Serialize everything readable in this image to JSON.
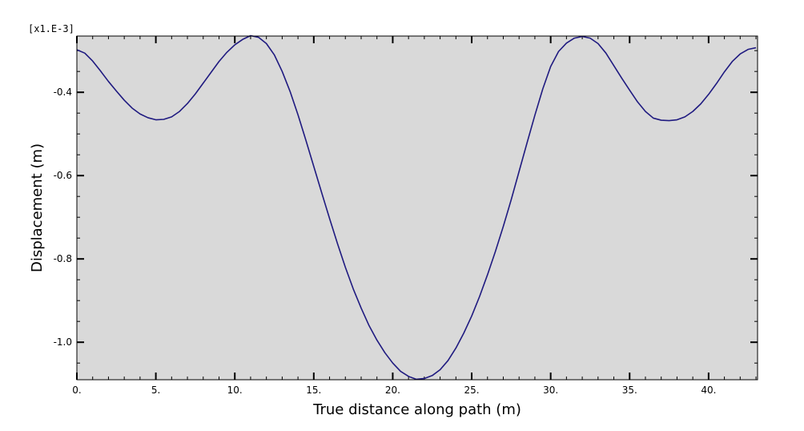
{
  "chart_data": {
    "type": "line",
    "title": "",
    "xlabel": "True distance along path (m)",
    "ylabel": "Displacement (m)",
    "y_multiplier_label": "[x1.E-3]",
    "xlim": [
      0,
      43.1
    ],
    "ylim": [
      -1.09,
      -0.265
    ],
    "x_ticks": [
      0,
      5,
      10,
      15,
      20,
      25,
      30,
      35,
      40
    ],
    "x_tick_labels": [
      "0.",
      "5.",
      "10.",
      "15.",
      "20.",
      "25.",
      "30.",
      "35.",
      "40."
    ],
    "y_ticks": [
      -0.4,
      -0.6,
      -0.8,
      -1.0
    ],
    "y_tick_labels": [
      "-0.4",
      "-0.6",
      "-0.8",
      "-1.0"
    ],
    "x_minor_step": 1,
    "y_minor_step": 0.05,
    "grid": false,
    "plot_background": "#d9d9d9",
    "line_color": "#1f1a80",
    "series": [
      {
        "x": [
          0,
          0.5,
          1,
          1.5,
          2,
          2.5,
          3,
          3.5,
          4,
          4.5,
          5,
          5.5,
          6,
          6.5,
          7,
          7.5,
          8,
          8.5,
          9,
          9.5,
          10,
          10.5,
          11,
          11.5,
          12,
          12.5,
          13,
          13.5,
          14,
          14.5,
          15,
          15.5,
          16,
          16.5,
          17,
          17.5,
          18,
          18.5,
          19,
          19.5,
          20,
          20.5,
          21,
          21.5,
          22,
          22.5,
          23,
          23.5,
          24,
          24.5,
          25,
          25.5,
          26,
          26.5,
          27,
          27.5,
          28,
          28.5,
          29,
          29.5,
          30,
          30.5,
          31,
          31.5,
          32,
          32.5,
          33,
          33.5,
          34,
          34.5,
          35,
          35.5,
          36,
          36.5,
          37,
          37.5,
          38,
          38.5,
          39,
          39.5,
          40,
          40.5,
          41,
          41.5,
          42,
          42.5,
          43
        ],
        "y": [
          -0.298,
          -0.306,
          -0.325,
          -0.349,
          -0.374,
          -0.397,
          -0.419,
          -0.438,
          -0.452,
          -0.461,
          -0.466,
          -0.465,
          -0.459,
          -0.446,
          -0.427,
          -0.404,
          -0.378,
          -0.352,
          -0.326,
          -0.304,
          -0.286,
          -0.273,
          -0.264,
          -0.268,
          -0.283,
          -0.31,
          -0.35,
          -0.398,
          -0.454,
          -0.515,
          -0.578,
          -0.641,
          -0.703,
          -0.763,
          -0.82,
          -0.872,
          -0.918,
          -0.96,
          -0.995,
          -1.025,
          -1.05,
          -1.07,
          -1.082,
          -1.089,
          -1.087,
          -1.08,
          -1.066,
          -1.044,
          -1.014,
          -0.978,
          -0.937,
          -0.89,
          -0.838,
          -0.782,
          -0.722,
          -0.658,
          -0.59,
          -0.522,
          -0.455,
          -0.392,
          -0.338,
          -0.302,
          -0.282,
          -0.27,
          -0.266,
          -0.27,
          -0.283,
          -0.306,
          -0.336,
          -0.366,
          -0.395,
          -0.423,
          -0.446,
          -0.462,
          -0.467,
          -0.468,
          -0.466,
          -0.459,
          -0.446,
          -0.428,
          -0.405,
          -0.379,
          -0.351,
          -0.326,
          -0.308,
          -0.297,
          -0.293
        ]
      }
    ]
  }
}
